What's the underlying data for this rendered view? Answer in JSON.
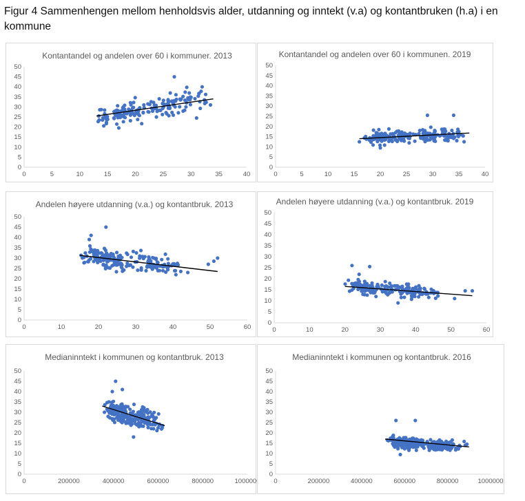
{
  "figure": {
    "title": "Figur 4 Sammenhengen mellom henholdsvis alder, utdanning og inntekt (v.a) og kontantbruken (h.a) i en kommune"
  },
  "colors": {
    "points": "#4472c4",
    "trendline": "#000000",
    "axis": "#d9d9d9",
    "text": "#595959"
  },
  "chart_data": [
    {
      "type": "scatter",
      "title": "Kontantandel og  andelen over 60 i kommuner. 2013",
      "xlim": [
        0,
        40
      ],
      "ylim": [
        0,
        50
      ],
      "xticks": [
        0,
        5,
        10,
        15,
        20,
        25,
        30,
        35,
        40
      ],
      "yticks": [
        0,
        5,
        10,
        15,
        20,
        25,
        30,
        35,
        40,
        45,
        50
      ],
      "cloud": {
        "n": 170,
        "x_range": [
          13,
          34
        ],
        "x_center": 24,
        "y_center": 30,
        "y_spread": 4.5,
        "slope": 0.5
      },
      "highlights": [
        [
          27,
          45
        ],
        [
          32,
          40
        ],
        [
          13.5,
          23.5
        ],
        [
          33.5,
          31
        ],
        [
          31,
          24.5
        ]
      ],
      "trendline": [
        [
          13,
          25.5
        ],
        [
          34,
          34
        ]
      ]
    },
    {
      "type": "scatter",
      "title": "Kontantandel og andelen over 60 i kommunen. 2019",
      "xlim": [
        0,
        40
      ],
      "ylim": [
        0,
        50
      ],
      "xticks": [
        0,
        5,
        10,
        15,
        20,
        25,
        30,
        35,
        40
      ],
      "yticks": [
        0,
        5,
        10,
        15,
        20,
        25,
        30,
        35,
        40,
        45,
        50
      ],
      "cloud": {
        "n": 200,
        "x_range": [
          16,
          37
        ],
        "x_center": 27,
        "y_center": 15.5,
        "y_spread": 2.6,
        "slope": 0.12
      },
      "highlights": [
        [
          29,
          25.5
        ],
        [
          34,
          25.5
        ],
        [
          20,
          9.5
        ],
        [
          36,
          12.5
        ],
        [
          16,
          12.5
        ]
      ],
      "trendline": [
        [
          16,
          14
        ],
        [
          37,
          16.8
        ]
      ]
    },
    {
      "type": "scatter",
      "title": "Andelen høyere utdanning (v.a.) og kontantbruk. 2013",
      "xlim": [
        0,
        60
      ],
      "ylim": [
        0,
        50
      ],
      "xticks": [
        0,
        10,
        20,
        30,
        40,
        50,
        60
      ],
      "yticks": [
        0,
        5,
        10,
        15,
        20,
        25,
        30,
        35,
        40,
        45,
        50
      ],
      "cloud": {
        "n": 190,
        "x_range": [
          15,
          45
        ],
        "x_center": 25,
        "y_center": 29,
        "y_spread": 4,
        "slope": -0.2
      },
      "highlights": [
        [
          22,
          45
        ],
        [
          18,
          41
        ],
        [
          17.5,
          39
        ],
        [
          52,
          30
        ],
        [
          51,
          28.5
        ],
        [
          49.5,
          27
        ],
        [
          44,
          23
        ]
      ],
      "trendline": [
        [
          15,
          31.3
        ],
        [
          52,
          23.5
        ]
      ]
    },
    {
      "type": "scatter",
      "title": "Andelen høyere utdanning (v.a.) og kontantbruk. 2019",
      "xlim": [
        0,
        60
      ],
      "ylim": [
        0,
        50
      ],
      "xticks": [
        0,
        10,
        20,
        30,
        40,
        50,
        60
      ],
      "yticks": [
        0,
        5,
        10,
        15,
        20,
        25,
        30,
        35,
        40,
        45,
        50
      ],
      "cloud": {
        "n": 190,
        "x_range": [
          20,
          48
        ],
        "x_center": 28,
        "y_center": 15.5,
        "y_spread": 2.6,
        "slope": -0.1
      },
      "highlights": [
        [
          22,
          26
        ],
        [
          27,
          25.5
        ],
        [
          56,
          14.5
        ],
        [
          54,
          14.5
        ],
        [
          51,
          11
        ],
        [
          35,
          9
        ],
        [
          24,
          22
        ]
      ],
      "trendline": [
        [
          20,
          16.5
        ],
        [
          56,
          12.3
        ]
      ]
    },
    {
      "type": "scatter",
      "title": "Medianinntekt i kommunen og kontantbruk. 2013",
      "xlim": [
        0,
        1000000
      ],
      "ylim": [
        0,
        50
      ],
      "xticks": [
        0,
        200000,
        400000,
        600000,
        800000,
        1000000
      ],
      "yticks": [
        0,
        5,
        10,
        15,
        20,
        25,
        30,
        35,
        40,
        45,
        50
      ],
      "cloud": {
        "n": 220,
        "x_range": [
          360000,
          640000
        ],
        "x_center": 460000,
        "y_center": 29,
        "y_spread": 4,
        "slope": -3e-05
      },
      "highlights": [
        [
          410000,
          45
        ],
        [
          395000,
          40
        ],
        [
          440000,
          41
        ],
        [
          360000,
          30
        ],
        [
          580000,
          22
        ],
        [
          490000,
          18
        ],
        [
          620000,
          23.5
        ]
      ],
      "trendline": [
        [
          350000,
          33
        ],
        [
          630000,
          23.5
        ]
      ]
    },
    {
      "type": "scatter",
      "title": "Medianinntekt i kommunen og kontantbruk. 2016",
      "xlim": [
        0,
        1000000
      ],
      "ylim": [
        0,
        50
      ],
      "xticks": [
        0,
        200000,
        400000,
        600000,
        800000,
        1000000
      ],
      "yticks": [
        0,
        5,
        10,
        15,
        20,
        25,
        30,
        35,
        40,
        45,
        50
      ],
      "cloud": {
        "n": 240,
        "x_range": [
          520000,
          900000
        ],
        "x_center": 690000,
        "y_center": 14.5,
        "y_spread": 2.3,
        "slope": -8e-06
      },
      "highlights": [
        [
          560000,
          26
        ],
        [
          650000,
          26
        ],
        [
          520000,
          16.5
        ],
        [
          580000,
          9.5
        ],
        [
          890000,
          14.5
        ],
        [
          800000,
          12
        ]
      ],
      "trendline": [
        [
          510000,
          17
        ],
        [
          900000,
          13.2
        ]
      ]
    }
  ]
}
